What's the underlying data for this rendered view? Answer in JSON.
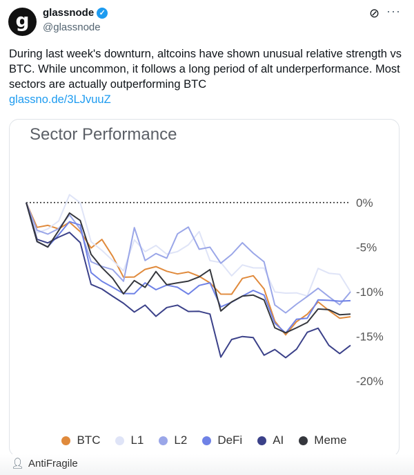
{
  "tweet": {
    "avatar_letter": "g",
    "name": "glassnode",
    "handle": "@glassnode",
    "text": "During last week's downturn, altcoins have shown unusual relative strength vs BTC. While uncommon, it follows a long period of alt underperformance. Most sectors are actually outperforming BTC",
    "link": "glassno.de/3LJvuuZ",
    "icons": [
      "verified-badge-icon",
      "grok-icon",
      "more-icon",
      "user-icon"
    ]
  },
  "footer": {
    "user": "AntiFragile"
  },
  "chart_data": {
    "type": "line",
    "title": "Sector Performance",
    "ylim": [
      -21,
      1
    ],
    "yticks": [
      "0%",
      "-5%",
      "-10%",
      "-15%",
      "-20%"
    ],
    "ytick_values": [
      0,
      -5,
      -10,
      -15,
      -20
    ],
    "reference_line": 0,
    "grid": false,
    "legend": "bottom",
    "series": [
      {
        "name": "BTC",
        "color": "#e08a3c",
        "values": [
          0,
          -3.2,
          -3,
          -3,
          -1.8,
          -2.8,
          -5,
          -4.5,
          -6.5,
          -8.5,
          -8,
          -7,
          -7,
          -8,
          -8.5,
          -8,
          -8,
          -8.5,
          -10,
          -10.5,
          -9,
          -8.5,
          -9.5,
          -12.8,
          -14.5,
          -13.5,
          -13,
          -11.5,
          -12,
          -12.5,
          -12.8
        ]
      },
      {
        "name": "L1",
        "color": "#dfe4f7",
        "values": [
          0,
          -3,
          -2.5,
          -2,
          0.5,
          -0.5,
          -4.5,
          -5,
          -6,
          -7.5,
          -4.5,
          -6,
          -5,
          -5.5,
          -5,
          -4.5,
          -3.5,
          -7,
          -7,
          -8,
          -6.5,
          -7,
          -7.5,
          -10.5,
          -10.5,
          -10,
          -10,
          -7,
          -8,
          -8.5,
          -10
        ]
      },
      {
        "name": "L2",
        "color": "#9aa6e8",
        "values": [
          0,
          -3.5,
          -4,
          -3,
          -1,
          -2.5,
          -6.5,
          -7.5,
          -8,
          -9,
          -2.5,
          -6,
          -5.5,
          -6.5,
          -4,
          -3,
          -5,
          -4.5,
          -6.5,
          -6,
          -5,
          -6,
          -6.5,
          -11,
          -12,
          -11.5,
          -11,
          -10,
          -10.5,
          -11,
          -10
        ]
      },
      {
        "name": "DeFi",
        "color": "#6f82e6",
        "values": [
          0,
          -4,
          -4.5,
          -3.5,
          -2.5,
          -3,
          -8,
          -8.5,
          -9,
          -10,
          -10.5,
          -9.5,
          -10,
          -9,
          -9,
          -10,
          -9.5,
          -9.5,
          -12,
          -11,
          -10,
          -9.5,
          -10.5,
          -14,
          -15,
          -13,
          -12.5,
          -10.5,
          -11,
          -11.5,
          -11
        ]
      },
      {
        "name": "AI",
        "color": "#3b4189",
        "values": [
          0,
          -4.5,
          -5,
          -4,
          -3,
          -4,
          -9,
          -10,
          -11,
          -11.5,
          -12,
          -11,
          -12.5,
          -12,
          -12,
          -12.5,
          -12,
          -12,
          -17,
          -15.5,
          -15.5,
          -15.5,
          -17,
          -16,
          -17,
          -16.5,
          -15,
          -14.5,
          -16,
          -16.5,
          -16
        ]
      },
      {
        "name": "Meme",
        "color": "#35373d",
        "values": [
          0,
          -4,
          -4.5,
          -3,
          -1.5,
          -2.5,
          -6,
          -7,
          -8,
          -10,
          -9,
          -10,
          -8,
          -9,
          -8.5,
          -8.5,
          -8.5,
          -8,
          -12.5,
          -11,
          -10,
          -10,
          -11,
          -14.5,
          -15,
          -14,
          -13,
          -11.5,
          -12,
          -13,
          -12.5
        ]
      }
    ]
  }
}
